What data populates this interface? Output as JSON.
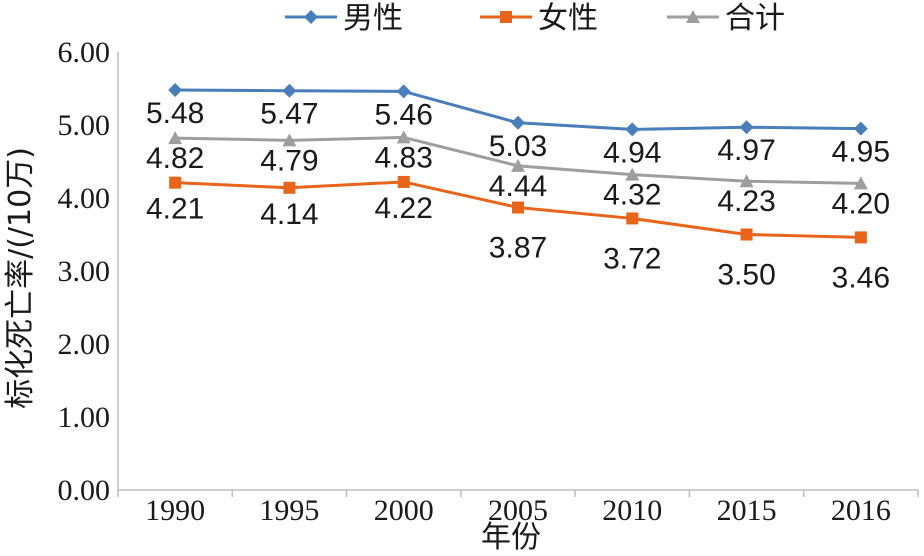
{
  "chart_data": {
    "type": "line",
    "categories": [
      "1990",
      "1995",
      "2000",
      "2005",
      "2010",
      "2015",
      "2016"
    ],
    "series": [
      {
        "name": "男性",
        "color": "#4a7ebb",
        "marker": "diamond",
        "values": [
          5.48,
          5.47,
          5.46,
          5.03,
          4.94,
          4.97,
          4.95
        ]
      },
      {
        "name": "女性",
        "color": "#e8641b",
        "marker": "square",
        "values": [
          4.21,
          4.14,
          4.22,
          3.87,
          3.72,
          3.5,
          3.46
        ]
      },
      {
        "name": "合计",
        "color": "#9e9e9e",
        "marker": "triangle",
        "values": [
          4.82,
          4.79,
          4.83,
          4.44,
          4.32,
          4.23,
          4.2
        ]
      }
    ],
    "data_labels": {
      "男性": [
        "5.48",
        "5.47",
        "5.46",
        "5.03",
        "4.94",
        "4.97",
        "4.95"
      ],
      "女性": [
        "4.21",
        "4.14",
        "4.22",
        "3.87",
        "3.72",
        "3.50",
        "3.46"
      ],
      "合计": [
        "4.82",
        "4.79",
        "4.83",
        "4.44",
        "4.32",
        "4.23",
        "4.20"
      ]
    },
    "y_ticks": [
      "0.00",
      "1.00",
      "2.00",
      "3.00",
      "4.00",
      "5.00",
      "6.00"
    ],
    "ylim": [
      0,
      6
    ],
    "xlabel": "年份",
    "ylabel": "标化死亡率/(/10万)",
    "legend_position": "top",
    "grid": false
  }
}
